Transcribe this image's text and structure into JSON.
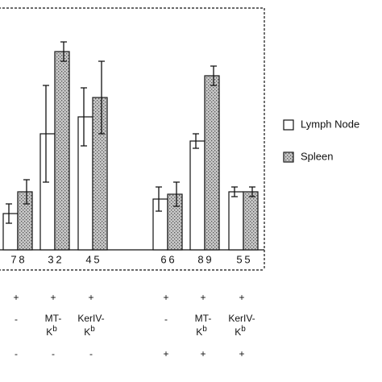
{
  "chart_data": {
    "type": "bar",
    "ylim": [
      0,
      100
    ],
    "series": [
      {
        "name": "Lymph Node",
        "color": "#ffffff",
        "values": [
          15,
          48,
          55,
          21,
          45,
          24
        ],
        "errors": [
          4,
          20,
          12,
          5,
          3,
          2
        ],
        "n": [
          7,
          3,
          4,
          6,
          8,
          5
        ]
      },
      {
        "name": "Spleen",
        "color": "#c8c8c8",
        "values": [
          24,
          82,
          63,
          23,
          72,
          24
        ],
        "errors": [
          5,
          4,
          15,
          5,
          4,
          2
        ],
        "n": [
          8,
          2,
          5,
          6,
          9,
          5
        ]
      }
    ],
    "conditions": [
      [
        "+",
        "+",
        "+",
        "+",
        "+",
        "+"
      ],
      [
        "-",
        {
          "prefix": "MT-",
          "base": "K",
          "sup": "b"
        },
        {
          "prefix": "KerIV-",
          "base": "K",
          "sup": "b"
        },
        "-",
        {
          "prefix": "MT-",
          "base": "K",
          "sup": "b"
        },
        {
          "prefix": "KerIV-",
          "base": "K",
          "sup": "b"
        }
      ],
      [
        "-",
        "-",
        "-",
        "+",
        "+",
        "+"
      ]
    ]
  }
}
